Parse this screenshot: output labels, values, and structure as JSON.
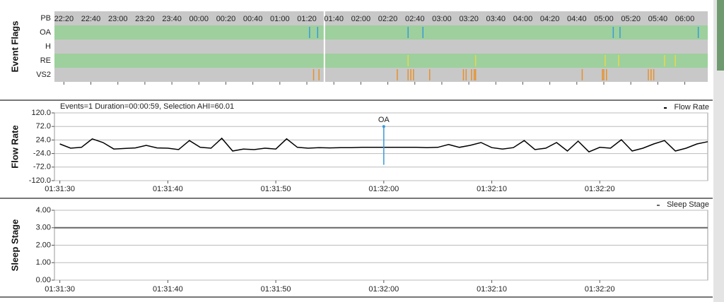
{
  "chart_data": [
    {
      "type": "events",
      "ylabel": "Event Flags",
      "band_colors": [
        "#c8c8c8",
        "#9dd09d"
      ],
      "series": [
        {
          "name": "PB",
          "color": "#3a9ad9",
          "x": []
        },
        {
          "name": "OA",
          "color": "#3a9ad9",
          "x": [
            "01:22",
            "01:28",
            "01:33",
            "02:35",
            "02:46",
            "05:07",
            "05:12",
            "06:10"
          ]
        },
        {
          "name": "H",
          "color": "#3a9ad9",
          "x": []
        },
        {
          "name": "RE",
          "color": "#e8d84a",
          "x": [
            "01:33",
            "02:35",
            "03:25",
            "05:01",
            "05:11",
            "05:45",
            "05:53"
          ]
        },
        {
          "name": "VS2",
          "color": "#e8902a",
          "x": [
            "01:25",
            "01:29",
            "01:33",
            "02:27",
            "02:35",
            "02:37",
            "02:39",
            "02:51",
            "03:16",
            "03:18",
            "03:22",
            "03:24",
            "03:25",
            "04:44",
            "04:59",
            "05:00",
            "05:02",
            "05:33",
            "05:35",
            "05:37"
          ]
        }
      ],
      "cursor": "01:33",
      "xlim": [
        "22:13",
        "06:17"
      ],
      "xticks": [
        "22:20",
        "22:40",
        "23:00",
        "23:20",
        "23:40",
        "00:00",
        "00:20",
        "00:40",
        "01:00",
        "01:20",
        "01:40",
        "02:00",
        "02:20",
        "02:40",
        "03:00",
        "03:20",
        "03:40",
        "04:00",
        "04:20",
        "04:40",
        "05:00",
        "05:20",
        "05:40",
        "06:00"
      ]
    },
    {
      "type": "line",
      "ylabel": "Flow Rate",
      "title": "Events=1 Duration=00:00:59, Selection AHI=60.01",
      "series": [
        {
          "name": "Flow Rate",
          "color": "#000000",
          "x": [
            "01:31:30",
            "01:31:31",
            "01:31:32",
            "01:31:33",
            "01:31:34",
            "01:31:35",
            "01:31:36",
            "01:31:37",
            "01:31:38",
            "01:31:39",
            "01:31:40",
            "01:31:41",
            "01:31:42",
            "01:31:43",
            "01:31:44",
            "01:31:45",
            "01:31:46",
            "01:31:47",
            "01:31:48",
            "01:31:49",
            "01:31:50",
            "01:31:51",
            "01:31:52",
            "01:31:53",
            "01:31:54",
            "01:31:55",
            "01:31:56",
            "01:31:57",
            "01:31:58",
            "01:31:59",
            "01:32:00",
            "01:32:01",
            "01:32:02",
            "01:32:03",
            "01:32:04",
            "01:32:05",
            "01:32:06",
            "01:32:07",
            "01:32:08",
            "01:32:09",
            "01:32:10",
            "01:32:11",
            "01:32:12",
            "01:32:13",
            "01:32:14",
            "01:32:15",
            "01:32:16",
            "01:32:17",
            "01:32:18",
            "01:32:19",
            "01:32:20",
            "01:32:21",
            "01:32:22",
            "01:32:23",
            "01:32:24",
            "01:32:25",
            "01:32:26",
            "01:32:27",
            "01:32:28",
            "01:32:29",
            "01:32:30"
          ],
          "values": [
            10,
            -5,
            -2,
            28,
            15,
            -8,
            -6,
            -4,
            5,
            -4,
            -5,
            -10,
            22,
            -2,
            -5,
            30,
            -15,
            -8,
            -10,
            -5,
            -8,
            28,
            -2,
            -5,
            -3,
            -4,
            -3,
            -3,
            -2,
            -2,
            -2,
            -2,
            -2,
            -2,
            -3,
            -2,
            8,
            -2,
            5,
            15,
            -3,
            -8,
            -3,
            22,
            -10,
            -5,
            15,
            -15,
            20,
            -18,
            -2,
            -5,
            25,
            -15,
            -5,
            10,
            22,
            -15,
            -5,
            10,
            18
          ]
        }
      ],
      "annotations": [
        {
          "x": "01:32:00",
          "label": "OA",
          "y": [
            72,
            -64
          ]
        }
      ],
      "xlim": [
        "01:31:29.5",
        "01:32:30"
      ],
      "xticks": [
        "01:31:30",
        "01:31:40",
        "01:31:50",
        "01:32:00",
        "01:32:10",
        "01:32:20"
      ],
      "ylim": [
        -120,
        120
      ],
      "yticks": [
        {
          "value": 120,
          "label": "120.0"
        },
        {
          "value": 72,
          "label": "72.0"
        },
        {
          "value": 24,
          "label": "24.0"
        },
        {
          "value": -24,
          "label": "-24.0"
        },
        {
          "value": -72,
          "label": "-72.0"
        },
        {
          "value": -120,
          "label": "-120.0"
        }
      ],
      "grid": true
    },
    {
      "type": "line",
      "ylabel": "Sleep Stage",
      "series": [
        {
          "name": "Sleep Stage",
          "color": "#666666",
          "x": [
            "01:31:29.5",
            "01:32:30"
          ],
          "values": [
            3,
            3
          ]
        }
      ],
      "xlim": [
        "01:31:29.5",
        "01:32:30"
      ],
      "xticks": [
        "01:31:30",
        "01:31:40",
        "01:31:50",
        "01:32:00",
        "01:32:10",
        "01:32:20"
      ],
      "ylim": [
        0,
        4
      ],
      "yticks": [
        {
          "value": 4,
          "label": "4.00"
        },
        {
          "value": 3,
          "label": "3.00"
        },
        {
          "value": 2,
          "label": "2.00"
        },
        {
          "value": 1,
          "label": "1.00"
        },
        {
          "value": 0,
          "label": "0.00"
        }
      ],
      "grid": true
    }
  ]
}
